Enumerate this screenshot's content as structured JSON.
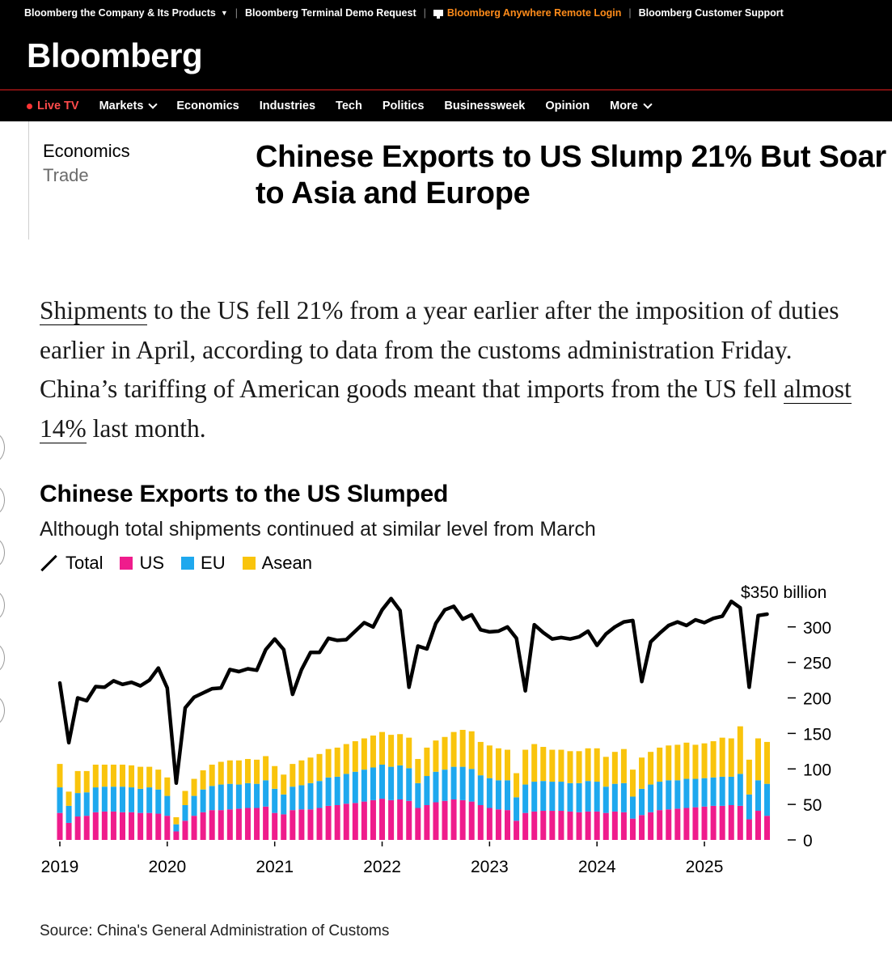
{
  "topbar": {
    "links": [
      {
        "label": "Bloomberg the Company & Its Products",
        "caret": "▼"
      },
      {
        "label": "Bloomberg Terminal Demo Request"
      },
      {
        "label": "Bloomberg Anywhere Remote Login",
        "highlight": "#ff8c1a"
      },
      {
        "label": "Bloomberg Customer Support"
      }
    ],
    "logo": "Bloomberg"
  },
  "nav": {
    "live": "Live TV",
    "items": [
      "Markets",
      "Economics",
      "Industries",
      "Tech",
      "Politics",
      "Businessweek",
      "Opinion",
      "More"
    ]
  },
  "article": {
    "section": "Economics",
    "subsection": "Trade",
    "headline": "Chinese Exports to US Slump 21% But Soar to Asia and Europe",
    "body": {
      "link1": "Shipments",
      "text1": " to the US fell 21% from a year earlier after the imposition of duties earlier in April, according to data from the customs administration Friday. China’s tariffing of American goods meant that imports from the US fell ",
      "link2": "almost 14%",
      "text2": " last month."
    }
  },
  "chart_title": "Chinese Exports to the US Slumped",
  "chart_subtitle": "Although total shipments continued at similar level from March",
  "legend": [
    "Total",
    "US",
    "EU",
    "Asean"
  ],
  "source": "Source: China's General Administration of Customs",
  "colors": {
    "us": "#ef1c8c",
    "eu": "#1ea8ee",
    "asean": "#f9c40c",
    "total": "#000000",
    "accent": "#ff8c1a"
  },
  "chart_data": {
    "type": "bar",
    "stacked": true,
    "x_start": "2019-01",
    "x_end": "2025-04",
    "frequency": "monthly",
    "x_tick_labels": [
      "2019",
      "2020",
      "2021",
      "2022",
      "2023",
      "2024",
      "2025"
    ],
    "y_tick_labels": [
      "0",
      "50",
      "100",
      "150",
      "200",
      "250",
      "300",
      "$350 billion"
    ],
    "ylim": [
      0,
      350
    ],
    "ylabel": "",
    "grid": false,
    "legend_position": "top-left",
    "series": [
      {
        "name": "US",
        "type": "bar",
        "values": [
          38,
          24,
          33,
          34,
          39,
          40,
          40,
          39,
          39,
          38,
          38,
          37,
          34,
          12,
          27,
          34,
          39,
          42,
          42,
          43,
          44,
          45,
          45,
          47,
          38,
          36,
          42,
          43,
          43,
          45,
          48,
          49,
          51,
          52,
          54,
          56,
          58,
          56,
          57,
          55,
          45,
          49,
          53,
          55,
          57,
          56,
          54,
          49,
          45,
          43,
          42,
          27,
          38,
          40,
          41,
          41,
          41,
          40,
          39,
          40,
          40,
          38,
          40,
          39,
          30,
          35,
          39,
          42,
          43,
          44,
          45,
          46,
          47,
          48,
          48,
          49,
          48,
          29,
          41,
          34
        ]
      },
      {
        "name": "EU",
        "type": "bar",
        "values": [
          36,
          24,
          33,
          33,
          35,
          35,
          35,
          36,
          35,
          34,
          36,
          34,
          28,
          10,
          22,
          28,
          32,
          34,
          36,
          36,
          34,
          35,
          34,
          37,
          34,
          28,
          33,
          34,
          37,
          38,
          40,
          40,
          42,
          44,
          45,
          46,
          48,
          47,
          48,
          46,
          35,
          41,
          43,
          44,
          46,
          47,
          46,
          42,
          42,
          41,
          42,
          33,
          40,
          42,
          42,
          41,
          41,
          40,
          41,
          43,
          42,
          37,
          39,
          41,
          31,
          37,
          39,
          40,
          41,
          40,
          41,
          40,
          40,
          40,
          41,
          40,
          45,
          35,
          43,
          45
        ]
      },
      {
        "name": "Asean",
        "type": "bar",
        "values": [
          33,
          20,
          31,
          30,
          32,
          31,
          31,
          31,
          31,
          31,
          29,
          28,
          26,
          10,
          20,
          24,
          27,
          30,
          32,
          33,
          34,
          34,
          34,
          34,
          32,
          28,
          32,
          35,
          36,
          38,
          40,
          41,
          42,
          43,
          44,
          45,
          46,
          45,
          44,
          43,
          34,
          40,
          44,
          46,
          49,
          52,
          53,
          47,
          46,
          45,
          43,
          34,
          49,
          53,
          48,
          45,
          45,
          45,
          45,
          46,
          47,
          42,
          45,
          48,
          38,
          44,
          46,
          48,
          49,
          50,
          51,
          48,
          49,
          51,
          55,
          54,
          67,
          49,
          59,
          59
        ]
      },
      {
        "name": "Total",
        "type": "line",
        "values": [
          221,
          137,
          200,
          196,
          216,
          215,
          224,
          219,
          222,
          217,
          225,
          242,
          214,
          80,
          186,
          201,
          207,
          213,
          214,
          240,
          237,
          241,
          239,
          268,
          283,
          268,
          205,
          240,
          264,
          264,
          284,
          281,
          282,
          294,
          306,
          300,
          324,
          340,
          323,
          215,
          273,
          269,
          305,
          324,
          329,
          311,
          317,
          296,
          293,
          294,
          300,
          284,
          210,
          303,
          292,
          283,
          285,
          283,
          286,
          294,
          274,
          290,
          300,
          307,
          309,
          223,
          279,
          291,
          302,
          307,
          302,
          310,
          306,
          312,
          315,
          336,
          327,
          215,
          316,
          318
        ]
      }
    ]
  }
}
